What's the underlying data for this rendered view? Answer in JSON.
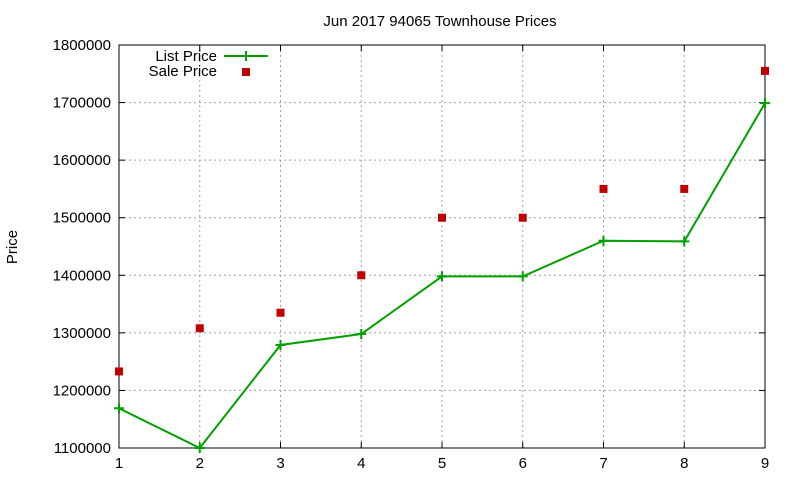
{
  "chart_data": {
    "type": "line",
    "title": "Jun 2017 94065 Townhouse Prices",
    "xlabel": "",
    "ylabel": "Price",
    "x": [
      1,
      2,
      3,
      4,
      5,
      6,
      7,
      8,
      9
    ],
    "xlim": [
      1,
      9
    ],
    "ylim": [
      1100000,
      1800000
    ],
    "xticks": [
      1,
      2,
      3,
      4,
      5,
      6,
      7,
      8,
      9
    ],
    "yticks": [
      1100000,
      1200000,
      1300000,
      1400000,
      1500000,
      1600000,
      1700000,
      1800000
    ],
    "grid": true,
    "legend_position": "top-left",
    "series": [
      {
        "name": "List Price",
        "style": "line-with-plus-markers",
        "color": "#00a000",
        "values": [
          1169000,
          1100000,
          1279000,
          1298000,
          1398000,
          1398000,
          1460000,
          1459000,
          1699000
        ]
      },
      {
        "name": "Sale Price",
        "style": "square-markers",
        "color": "#c00000",
        "values": [
          1233000,
          1308000,
          1335000,
          1400000,
          1500000,
          1500000,
          1550000,
          1550000,
          1755000
        ]
      }
    ]
  }
}
